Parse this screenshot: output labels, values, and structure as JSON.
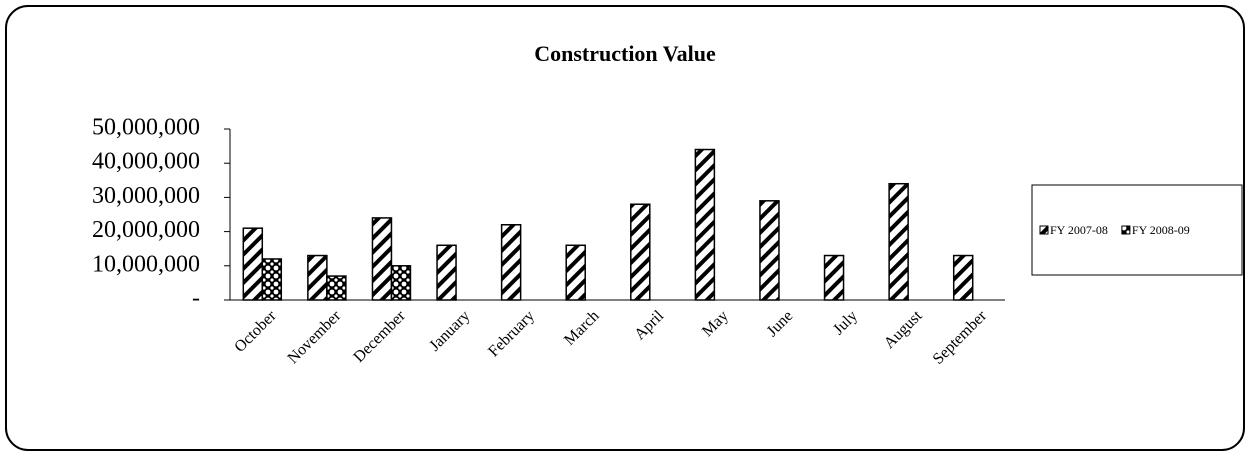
{
  "chart_data": {
    "type": "bar",
    "title": "Construction Value",
    "categories": [
      "October",
      "November",
      "December",
      "January",
      "February",
      "March",
      "April",
      "May",
      "June",
      "July",
      "August",
      "September"
    ],
    "series": [
      {
        "name": "FY 2007-08",
        "color": "#000000",
        "values": [
          21000000,
          13000000,
          24000000,
          16000000,
          22000000,
          16000000,
          28000000,
          44000000,
          29000000,
          13000000,
          34000000,
          13000000
        ]
      },
      {
        "name": "FY 2008-09",
        "color": "#000000",
        "values": [
          12000000,
          7000000,
          10000000,
          null,
          null,
          null,
          null,
          null,
          null,
          null,
          null,
          null
        ]
      }
    ],
    "ylim": [
      0,
      50000000
    ],
    "yticks": [
      {
        "value": 0,
        "label": "-"
      },
      {
        "value": 10000000,
        "label": "10,000,000"
      },
      {
        "value": 20000000,
        "label": "20,000,000"
      },
      {
        "value": 30000000,
        "label": "30,000,000"
      },
      {
        "value": 40000000,
        "label": "40,000,000"
      },
      {
        "value": 50000000,
        "label": "50,000,000"
      }
    ],
    "grid": false,
    "legend": "right"
  }
}
